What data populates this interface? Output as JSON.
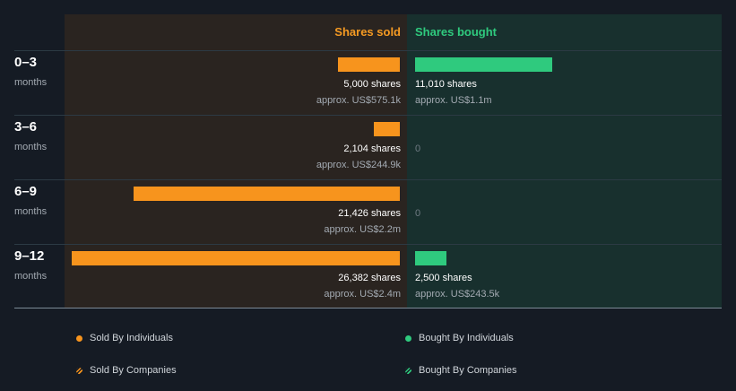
{
  "colors": {
    "sold": "#f7941d",
    "bought": "#2fca7e"
  },
  "headers": {
    "sold": "Shares sold",
    "bought": "Shares bought"
  },
  "legend": {
    "sold_individuals": "Sold By Individuals",
    "bought_individuals": "Bought By Individuals",
    "sold_companies": "Sold By Companies",
    "bought_companies": "Bought By Companies"
  },
  "chart_data": {
    "type": "bar",
    "title": "",
    "categories": [
      "0–3",
      "3–6",
      "6–9",
      "9–12"
    ],
    "category_unit": "months",
    "series": [
      {
        "name": "Shares sold",
        "values": [
          5000,
          2104,
          21426,
          26382
        ],
        "labels": [
          "5,000 shares",
          "2,104 shares",
          "21,426 shares",
          "26,382 shares"
        ],
        "approx": [
          "approx. US$575.1k",
          "approx. US$244.9k",
          "approx. US$2.2m",
          "approx. US$2.4m"
        ]
      },
      {
        "name": "Shares bought",
        "values": [
          11010,
          0,
          0,
          2500
        ],
        "labels": [
          "11,010 shares",
          "0",
          "0",
          "2,500 shares"
        ],
        "approx": [
          "approx. US$1.1m",
          "",
          "",
          "approx. US$243.5k"
        ]
      }
    ],
    "xmax": 26382
  }
}
